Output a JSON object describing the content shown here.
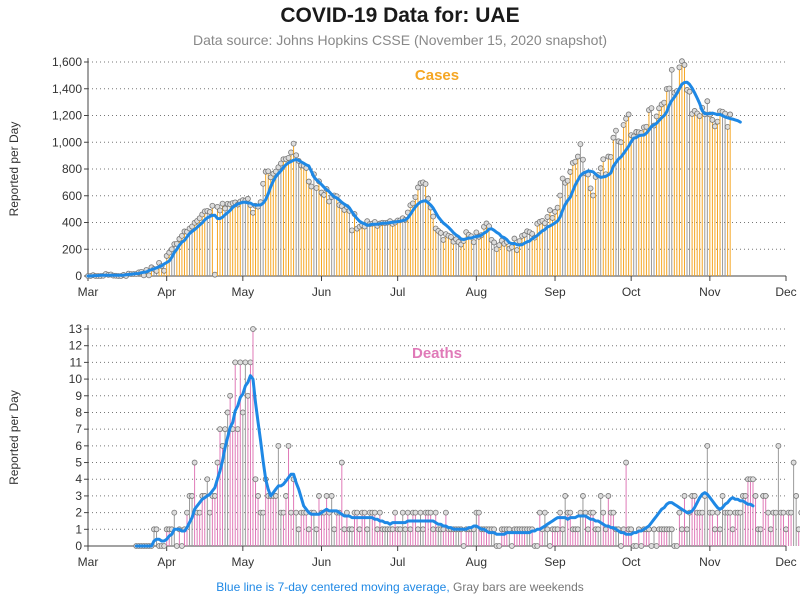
{
  "title": "COVID-19 Data for: UAE",
  "subtitle": "Data source: Johns Hopkins CSSE (November 15, 2020 snapshot)",
  "footnote": {
    "blue": "Blue line is 7-day centered moving average,",
    "gray": "Gray bars are weekends"
  },
  "colors": {
    "cases": "#f5a623",
    "deaths": "#e07ab8",
    "weekend": "#9a9a9a",
    "average": "#1e88e5",
    "grid": "#777777"
  },
  "months": [
    "Mar",
    "Apr",
    "May",
    "Jun",
    "Jul",
    "Aug",
    "Sep",
    "Oct",
    "Nov",
    "Dec"
  ],
  "chart_data": [
    {
      "type": "bar",
      "title": "Cases",
      "ylabel": "Reported per Day",
      "ylim": [
        0,
        1600
      ],
      "yticks": [
        0,
        200,
        400,
        600,
        800,
        1000,
        1200,
        1400,
        1600
      ],
      "ytick_labels": [
        "0",
        "200",
        "400",
        "600",
        "800",
        "1,000",
        "1,200",
        "1,400",
        "1,600"
      ],
      "grid": true,
      "x_start": "Mar 1, 2020",
      "x_end": "Dec 1, 2020",
      "first_value_date": "Mar 1, 2020",
      "series": [
        {
          "name": "Cases",
          "values": [
            0,
            0,
            6,
            0,
            0,
            0,
            2,
            15,
            9,
            11,
            3,
            2,
            0,
            0,
            8,
            0,
            18,
            14,
            15,
            15,
            27,
            31,
            5,
            45,
            5,
            65,
            52,
            38,
            98,
            74,
            39,
            150,
            175,
            200,
            238,
            241,
            277,
            300,
            333,
            331,
            355,
            370,
            398,
            412,
            432,
            460,
            483,
            487,
            479,
            525,
            10,
            517,
            490,
            541,
            505,
            540,
            536,
            545,
            550,
            534,
            557,
            567,
            564,
            577,
            530,
            473,
            525,
            519,
            552,
            690,
            780,
            783,
            738,
            765,
            781,
            813,
            841,
            873,
            875,
            883,
            924,
            990,
            903,
            861,
            827,
            824,
            808,
            706,
            669,
            761,
            658,
            708,
            624,
            606,
            650,
            557,
            591,
            602,
            596,
            530,
            522,
            494,
            516,
            487,
            341,
            463,
            354,
            369,
            380,
            370,
            410,
            388,
            391,
            404,
            375,
            392,
            398,
            396,
            399,
            410,
            390,
            400,
            415,
            416,
            432,
            420,
            475,
            529,
            543,
            589,
            662,
            694,
            700,
            688,
            578,
            512,
            445,
            355,
            337,
            322,
            270,
            313,
            301,
            292,
            256,
            275,
            254,
            235,
            262,
            328,
            308,
            297,
            253,
            326,
            293,
            305,
            368,
            393,
            372,
            270,
            251,
            201,
            231,
            264,
            241,
            255,
            205,
            216,
            280,
            194,
            261,
            300,
            308,
            334,
            327,
            315,
            287,
            391,
            405,
            412,
            395,
            441,
            492,
            434,
            480,
            511,
            602,
            729,
            697,
            712,
            778,
            846,
            855,
            893,
            986,
            870,
            767,
            759,
            655,
            602,
            741,
            755,
            806,
            873,
            761,
            893,
            890,
            1034,
            1087,
            1007,
            1000,
            1129,
            1176,
            1208,
            1053,
            1043,
            1077,
            1075,
            1069,
            1111,
            1116,
            1241,
            1255,
            1125,
            1193,
            1254,
            1283,
            1296,
            1398,
            1402,
            1542,
            1370,
            1382,
            1560,
            1606,
            1578,
            1391,
            1378,
            1212,
            1234,
            1215,
            1196,
            1258,
            1209,
            1307,
            1208,
            1167,
            1119,
            1154,
            1232,
            1228,
            1214,
            1115,
            1208
          ]
        },
        {
          "name": "7-day average",
          "values": [
            0,
            0,
            2,
            3,
            4,
            5,
            5,
            6,
            6,
            6,
            6,
            6,
            5,
            5,
            7,
            9,
            11,
            13,
            16,
            18,
            19,
            25,
            28,
            30,
            40,
            48,
            53,
            61,
            69,
            76,
            90,
            101,
            112,
            140,
            176,
            200,
            230,
            253,
            267,
            292,
            317,
            333,
            347,
            364,
            381,
            397,
            420,
            435,
            445,
            453,
            454,
            430,
            429,
            440,
            458,
            474,
            490,
            513,
            528,
            538,
            545,
            552,
            552,
            546,
            546,
            534,
            529,
            531,
            531,
            544,
            571,
            614,
            667,
            710,
            743,
            766,
            786,
            813,
            832,
            846,
            856,
            866,
            871,
            865,
            853,
            843,
            831,
            823,
            782,
            741,
            719,
            703,
            684,
            663,
            645,
            631,
            609,
            593,
            583,
            568,
            551,
            537,
            525,
            510,
            479,
            452,
            429,
            409,
            398,
            390,
            378,
            382,
            387,
            387,
            387,
            391,
            395,
            395,
            396,
            399,
            402,
            404,
            407,
            410,
            414,
            419,
            434,
            460,
            491,
            517,
            538,
            553,
            560,
            563,
            548,
            531,
            508,
            475,
            441,
            418,
            396,
            381,
            365,
            345,
            324,
            307,
            295,
            277,
            273,
            278,
            284,
            283,
            291,
            295,
            298,
            305,
            320,
            331,
            350,
            353,
            342,
            327,
            315,
            294,
            286,
            272,
            250,
            242,
            244,
            234,
            232,
            234,
            246,
            256,
            261,
            280,
            291,
            303,
            321,
            337,
            347,
            366,
            374,
            385,
            397,
            411,
            441,
            491,
            535,
            565,
            589,
            636,
            681,
            716,
            750,
            767,
            775,
            785,
            783,
            779,
            761,
            747,
            737,
            741,
            745,
            756,
            771,
            822,
            848,
            875,
            890,
            916,
            943,
            970,
            1005,
            1030,
            1035,
            1048,
            1053,
            1054,
            1068,
            1090,
            1119,
            1130,
            1142,
            1163,
            1183,
            1200,
            1227,
            1277,
            1312,
            1336,
            1365,
            1401,
            1435,
            1447,
            1449,
            1433,
            1405,
            1370,
            1330,
            1289,
            1237,
            1214,
            1213,
            1214,
            1218,
            1213,
            1207,
            1208,
            1199,
            1189,
            1183,
            1177,
            1173,
            1167,
            1161,
            1151
          ]
        }
      ]
    },
    {
      "type": "bar",
      "title": "Deaths",
      "ylabel": "Reported per Day",
      "ylim": [
        0,
        13
      ],
      "yticks": [
        0,
        1,
        2,
        3,
        4,
        5,
        6,
        7,
        8,
        9,
        10,
        11,
        12,
        13
      ],
      "ytick_labels": [
        "0",
        "1",
        "2",
        "3",
        "4",
        "5",
        "6",
        "7",
        "8",
        "9",
        "10",
        "11",
        "12",
        "13"
      ],
      "grid": true,
      "x_start": "Mar 1, 2020",
      "x_end": "Dec 1, 2020",
      "first_value_date": "Mar 20, 2020",
      "series": [
        {
          "name": "Deaths",
          "values": [
            0,
            0,
            0,
            0,
            0,
            0,
            0,
            1,
            1,
            0,
            0,
            0,
            1,
            1,
            1,
            2,
            0,
            1,
            0,
            1,
            2,
            3,
            3,
            5,
            2,
            2,
            3,
            3,
            4,
            2,
            3,
            3,
            5,
            7,
            6,
            7,
            8,
            9,
            7,
            11,
            7,
            11,
            8,
            11,
            9,
            11,
            13,
            4,
            3,
            2,
            2,
            4,
            3,
            3,
            3,
            3,
            6,
            2,
            2,
            3,
            6,
            2,
            4,
            2,
            1,
            2,
            2,
            2,
            1,
            2,
            2,
            1,
            3,
            2,
            2,
            3,
            2,
            3,
            1,
            2,
            2,
            5,
            1,
            2,
            1,
            1,
            2,
            2,
            1,
            2,
            2,
            1,
            2,
            2,
            2,
            1,
            2,
            1,
            1,
            1,
            1,
            1,
            2,
            1,
            1,
            2,
            1,
            2,
            1,
            2,
            2,
            1,
            2,
            1,
            2,
            2,
            2,
            1,
            2,
            1,
            1,
            1,
            2,
            1,
            1,
            1,
            1,
            1,
            1,
            0,
            1,
            1,
            1,
            1,
            2,
            2,
            1,
            1,
            1,
            1,
            1,
            1,
            0,
            0,
            1,
            1,
            1,
            1,
            0,
            1,
            1,
            1,
            1,
            1,
            1,
            1,
            1,
            0,
            0,
            2,
            1,
            2,
            1,
            0,
            1,
            1,
            1,
            2,
            1,
            3,
            2,
            2,
            1,
            1,
            1,
            2,
            3,
            2,
            1,
            2,
            2,
            1,
            1,
            3,
            2,
            1,
            3,
            2,
            2,
            1,
            1,
            0,
            1,
            5,
            1,
            1,
            0,
            0,
            1,
            0,
            1,
            1,
            1,
            0,
            1,
            0,
            1,
            1,
            1,
            1,
            1,
            1,
            0,
            0,
            2,
            1,
            3,
            1,
            2,
            3,
            3,
            2,
            2,
            2,
            3,
            6,
            2,
            2,
            1,
            2,
            1,
            3,
            2,
            2,
            2,
            1,
            2,
            2,
            2,
            3,
            3,
            4,
            4,
            4,
            3,
            1,
            1,
            3,
            3,
            2,
            1,
            2,
            2,
            6,
            2,
            2,
            1,
            2,
            2,
            5,
            3,
            1,
            2,
            3,
            2,
            3,
            5,
            2
          ]
        },
        {
          "name": "7-day average",
          "values": [
            0,
            0,
            0,
            0,
            0,
            0,
            0,
            0.3,
            0.4,
            0.4,
            0.3,
            0.3,
            0.4,
            0.6,
            0.7,
            1.0,
            1.0,
            1.0,
            0.9,
            0.9,
            1.1,
            1.4,
            1.7,
            2.2,
            2.4,
            2.6,
            2.8,
            2.9,
            3.0,
            3.1,
            3.3,
            3.5,
            4.0,
            4.5,
            5.1,
            5.9,
            6.5,
            7.1,
            7.4,
            8.1,
            8.4,
            8.9,
            9.1,
            9.6,
            9.8,
            10.2,
            10.0,
            8.6,
            7.4,
            6.3,
            5.1,
            4.0,
            3.4,
            3.0,
            3.2,
            3.4,
            3.6,
            3.6,
            3.7,
            3.9,
            4.1,
            4.3,
            4.3,
            3.8,
            3.4,
            2.9,
            2.4,
            2.2,
            2.0,
            1.9,
            1.9,
            1.9,
            1.9,
            2.0,
            2.1,
            2.2,
            2.1,
            2.1,
            2.1,
            2.1,
            2.0,
            1.9,
            1.8,
            1.8,
            1.8,
            1.7,
            1.7,
            1.7,
            1.7,
            1.7,
            1.7,
            1.7,
            1.7,
            1.7,
            1.6,
            1.6,
            1.5,
            1.5,
            1.4,
            1.4,
            1.3,
            1.4,
            1.4,
            1.4,
            1.4,
            1.4,
            1.4,
            1.5,
            1.5,
            1.5,
            1.5,
            1.5,
            1.5,
            1.5,
            1.5,
            1.5,
            1.5,
            1.5,
            1.4,
            1.3,
            1.3,
            1.2,
            1.2,
            1.1,
            1.1,
            1.0,
            1.0,
            1.0,
            1.0,
            1.0,
            1.0,
            1.1,
            1.1,
            1.2,
            1.2,
            1.1,
            1.0,
            1.0,
            0.9,
            0.8,
            0.8,
            0.8,
            0.7,
            0.7,
            0.7,
            0.7,
            0.8,
            0.8,
            0.8,
            0.8,
            0.8,
            0.8,
            0.8,
            0.8,
            0.8,
            0.8,
            0.9,
            0.9,
            1.0,
            1.0,
            1.1,
            1.2,
            1.3,
            1.4,
            1.5,
            1.6,
            1.7,
            1.7,
            1.7,
            1.7,
            1.6,
            1.7,
            1.7,
            1.7,
            1.8,
            1.8,
            1.8,
            1.8,
            1.7,
            1.6,
            1.6,
            1.5,
            1.5,
            1.4,
            1.3,
            1.2,
            1.2,
            1.1,
            1.1,
            1.0,
            0.9,
            0.8,
            0.8,
            0.7,
            0.7,
            0.7,
            0.8,
            0.8,
            0.9,
            0.9,
            1.0,
            1.1,
            1.2,
            1.4,
            1.6,
            1.8,
            2.0,
            2.2,
            2.3,
            2.5,
            2.6,
            2.6,
            2.5,
            2.4,
            2.3,
            2.2,
            2.1,
            2.0,
            2.0,
            2.1,
            2.3,
            2.6,
            2.9,
            3.1,
            3.2,
            3.1,
            2.9,
            2.7,
            2.5,
            2.3,
            2.2,
            2.3,
            2.5,
            2.6,
            2.8,
            2.9,
            2.8,
            2.8,
            2.7,
            2.7,
            2.6,
            2.5,
            2.5,
            2.4
          ]
        }
      ]
    }
  ]
}
